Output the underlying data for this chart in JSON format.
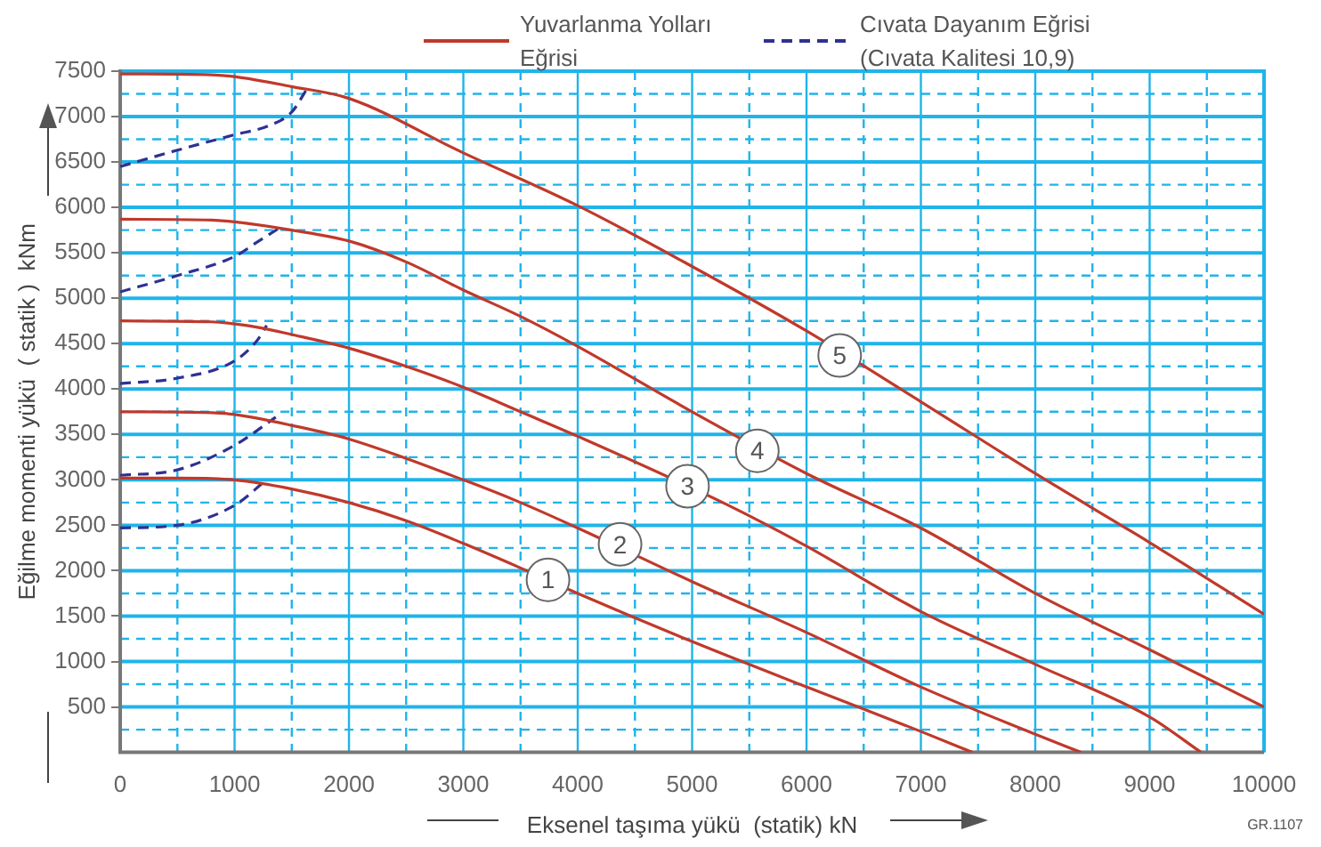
{
  "chart_data": {
    "type": "line",
    "xlabel": "Eksenel taşıma yükü  (statik) kN",
    "ylabel": "Eğilme momenti yükü  ( statik )  kNm",
    "xlim": [
      0,
      10000
    ],
    "ylim": [
      0,
      7500
    ],
    "xticks": [
      0,
      {
        "value": 500,
        "label": null
      },
      1000,
      {
        "value": 1500,
        "label": null
      },
      2000,
      {
        "value": 2500,
        "label": null
      },
      3000,
      {
        "value": 3500,
        "label": null
      },
      4000,
      {
        "value": 4500,
        "label": null
      },
      5000,
      {
        "value": 5500,
        "label": null
      },
      6000,
      {
        "value": 6500,
        "label": null
      },
      7000,
      {
        "value": 7500,
        "label": null
      },
      8000,
      {
        "value": 8500,
        "label": null
      },
      9000,
      {
        "value": 9500,
        "label": null
      },
      10000
    ],
    "yticks": [
      {
        "value": 250,
        "label": null
      },
      500,
      {
        "value": 750,
        "label": null
      },
      1000,
      {
        "value": 1250,
        "label": null
      },
      1500,
      {
        "value": 1750,
        "label": null
      },
      2000,
      {
        "value": 2250,
        "label": null
      },
      2500,
      {
        "value": 2750,
        "label": null
      },
      3000,
      {
        "value": 3250,
        "label": null
      },
      3500,
      {
        "value": 3750,
        "label": null
      },
      4000,
      {
        "value": 4250,
        "label": null
      },
      4500,
      {
        "value": 4750,
        "label": null
      },
      5000,
      {
        "value": 5250,
        "label": null
      },
      5500,
      {
        "value": 5750,
        "label": null
      },
      6000,
      {
        "value": 6250,
        "label": null
      },
      6500,
      {
        "value": 6750,
        "label": null
      },
      7000,
      {
        "value": 7250,
        "label": null
      },
      7500
    ],
    "grid": true,
    "legend": "top",
    "marker": "none",
    "series": [
      {
        "name": "Yuvarlanma Yolları Eğrisi",
        "color": "#c0392b",
        "line_style": "solid",
        "x": [
          0,
          500,
          1000,
          1500,
          2000,
          2500,
          3000,
          3500,
          4000,
          5000,
          6000,
          7000,
          7450
        ],
        "values": [
          3020,
          3020,
          3000,
          2900,
          2750,
          2550,
          2300,
          2030,
          1750,
          1220,
          720,
          230,
          0
        ]
      },
      {
        "color": "#c0392b",
        "line_style": "solid",
        "x": [
          0,
          800,
          1000,
          1500,
          2000,
          3000,
          3500,
          4000,
          5000,
          6000,
          7000,
          8000,
          8400
        ],
        "values": [
          3750,
          3740,
          3720,
          3600,
          3450,
          3000,
          2750,
          2470,
          1880,
          1320,
          720,
          200,
          0
        ]
      },
      {
        "color": "#c0392b",
        "line_style": "solid",
        "x": [
          0,
          800,
          1200,
          1500,
          2000,
          2500,
          3000,
          3500,
          4000,
          5300,
          6000,
          7000,
          8000,
          9000,
          9450
        ],
        "values": [
          4750,
          4740,
          4680,
          4600,
          4450,
          4250,
          4020,
          3750,
          3480,
          2730,
          2270,
          1550,
          970,
          390,
          0
        ]
      },
      {
        "color": "#c0392b",
        "line_style": "solid",
        "x": [
          0,
          800,
          1000,
          1500,
          2000,
          2500,
          3000,
          3500,
          4000,
          5000,
          6000,
          7000,
          8000,
          9000,
          10000
        ],
        "values": [
          5870,
          5860,
          5840,
          5750,
          5630,
          5400,
          5090,
          4800,
          4470,
          3750,
          3070,
          2470,
          1750,
          1130,
          500
        ]
      },
      {
        "color": "#c0392b",
        "line_style": "solid",
        "x": [
          0,
          800,
          1000,
          1500,
          2000,
          3000,
          4000,
          5000,
          6000,
          7000,
          8000,
          9000,
          10000
        ],
        "values": [
          7470,
          7460,
          7440,
          7330,
          7200,
          6600,
          6020,
          5350,
          4640,
          3860,
          3070,
          2310,
          1520
        ]
      },
      {
        "name": "Cıvata Dayanım Eğrisi (Cıvata Kalitesi 10,9)",
        "color": "#2e3192",
        "line_style": "dashed",
        "x": [
          0,
          500,
          1000,
          1270
        ],
        "values": [
          2470,
          2500,
          2720,
          2990
        ]
      },
      {
        "color": "#2e3192",
        "line_style": "dashed",
        "x": [
          0,
          500,
          1000,
          1360
        ],
        "values": [
          3050,
          3110,
          3380,
          3690
        ]
      },
      {
        "color": "#2e3192",
        "line_style": "dashed",
        "x": [
          0,
          500,
          1000,
          1200,
          1280
        ],
        "values": [
          4060,
          4120,
          4310,
          4540,
          4700
        ]
      },
      {
        "color": "#2e3192",
        "line_style": "dashed",
        "x": [
          0,
          500,
          1000,
          1200,
          1400
        ],
        "values": [
          5070,
          5250,
          5460,
          5620,
          5780
        ]
      },
      {
        "color": "#2e3192",
        "line_style": "dashed",
        "x": [
          0,
          500,
          1000,
          1300,
          1500,
          1640
        ],
        "values": [
          6450,
          6630,
          6800,
          6900,
          7050,
          7320
        ]
      }
    ],
    "annotations": [
      {
        "text": "1",
        "x": 3740,
        "y": 1900
      },
      {
        "text": "2",
        "x": 4370,
        "y": 2290
      },
      {
        "text": "3",
        "x": 4960,
        "y": 2930
      },
      {
        "text": "4",
        "x": 5570,
        "y": 3320
      },
      {
        "text": "5",
        "x": 6290,
        "y": 4370
      },
      "GR.1107"
    ]
  }
}
